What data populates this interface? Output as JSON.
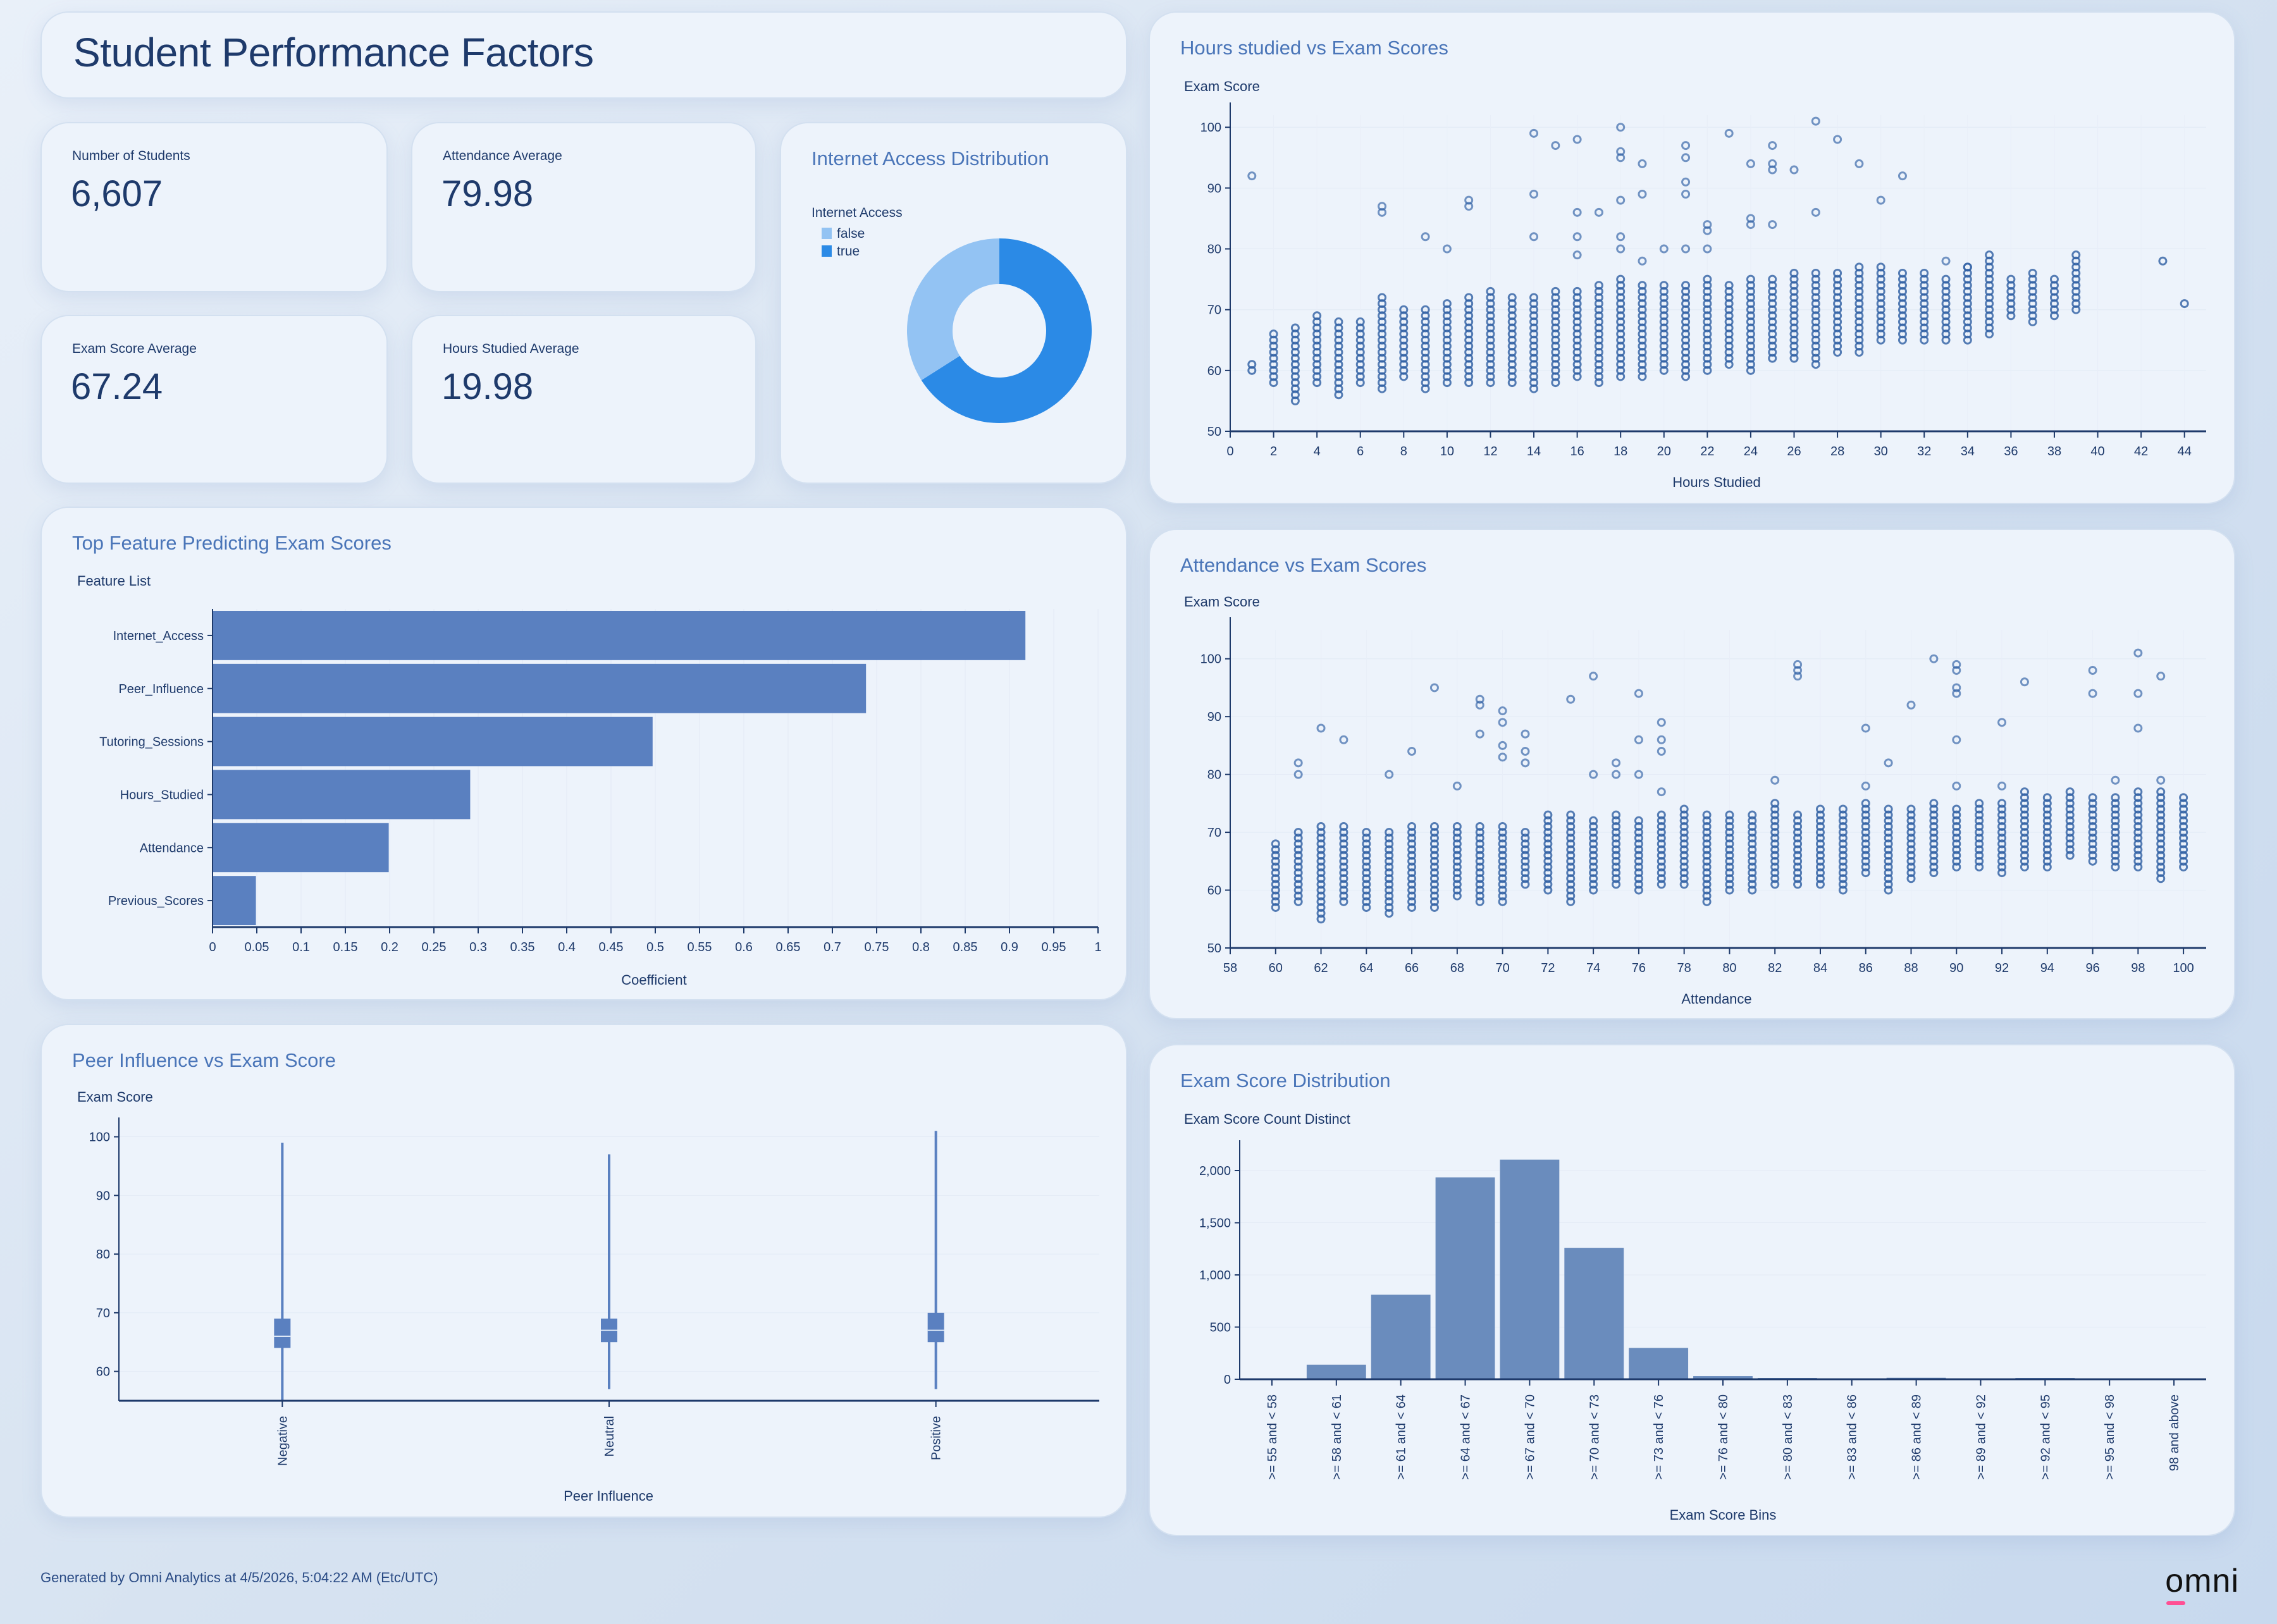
{
  "page": {
    "title": "Student Performance Factors",
    "footer": "Generated by Omni Analytics at 4/5/2026, 5:04:22 AM (Etc/UTC)",
    "logo_text": "omni",
    "logo_accent_color": "#ff4f94"
  },
  "kpis": [
    {
      "label": "Number of Students",
      "value": "6,607"
    },
    {
      "label": "Attendance Average",
      "value": "79.98"
    },
    {
      "label": "Exam Score Average",
      "value": "67.24"
    },
    {
      "label": "Hours Studied Average",
      "value": "19.98"
    }
  ],
  "colors": {
    "bar": "#5a80c0",
    "histogram_bar": "#6a8cbd",
    "point": "#2d5ea3",
    "donut_true": "#2b8ae6",
    "donut_false": "#93c3f3",
    "title": "#1e3a6b",
    "chart_title": "#4a75b8"
  },
  "chart_data": [
    {
      "id": "internet",
      "type": "pie",
      "title": "Internet Access Distribution",
      "legend_title": "Internet Access",
      "legend_position": "top-left",
      "donut": true,
      "slices": [
        {
          "label": "true",
          "value": 66
        },
        {
          "label": "false",
          "value": 34
        }
      ]
    },
    {
      "id": "features",
      "type": "bar",
      "orientation": "horizontal",
      "title": "Top Feature Predicting Exam Scores",
      "ylabel": "Feature List",
      "xlabel": "Coefficient",
      "categories": [
        "Internet_Access",
        "Peer_Influence",
        "Tutoring_Sessions",
        "Hours_Studied",
        "Attendance",
        "Previous_Scores"
      ],
      "values": [
        0.918,
        0.738,
        0.497,
        0.291,
        0.199,
        0.049
      ],
      "xlim": [
        0,
        1
      ],
      "xticks": [
        "0",
        "0.05",
        "0.1",
        "0.15",
        "0.2",
        "0.25",
        "0.3",
        "0.35",
        "0.4",
        "0.45",
        "0.5",
        "0.55",
        "0.6",
        "0.65",
        "0.7",
        "0.75",
        "0.8",
        "0.85",
        "0.9",
        "0.95",
        "1"
      ],
      "grid": true
    },
    {
      "id": "peer",
      "type": "box",
      "title": "Peer Influence vs Exam Score",
      "ylabel": "Exam Score",
      "xlabel": "Peer Influence",
      "categories": [
        "Negative",
        "Neutral",
        "Positive"
      ],
      "boxes": [
        {
          "min": 55,
          "q1": 64,
          "median": 66,
          "q3": 69,
          "max": 99
        },
        {
          "min": 57,
          "q1": 65,
          "median": 67,
          "q3": 69,
          "max": 97
        },
        {
          "min": 57,
          "q1": 65,
          "median": 67,
          "q3": 70,
          "max": 101
        }
      ],
      "ylim": [
        55,
        102
      ],
      "yticks": [
        "60",
        "70",
        "80",
        "90",
        "100"
      ]
    },
    {
      "id": "hours",
      "type": "scatter",
      "title": "Hours studied vs Exam Scores",
      "ylabel": "Exam Score",
      "xlabel": "Hours Studied",
      "xlim": [
        0,
        45
      ],
      "ylim": [
        50,
        102
      ],
      "xticks": [
        "0",
        "2",
        "4",
        "6",
        "8",
        "10",
        "12",
        "14",
        "16",
        "18",
        "20",
        "22",
        "24",
        "26",
        "28",
        "30",
        "32",
        "34",
        "36",
        "38",
        "40",
        "42",
        "44"
      ],
      "yticks": [
        "50",
        "60",
        "70",
        "80",
        "90",
        "100"
      ],
      "columns": [
        [
          1,
          60,
          61
        ],
        [
          2,
          58,
          66
        ],
        [
          3,
          55,
          67
        ],
        [
          4,
          58,
          69
        ],
        [
          5,
          56,
          68
        ],
        [
          6,
          58,
          68
        ],
        [
          7,
          57,
          72
        ],
        [
          8,
          59,
          70
        ],
        [
          9,
          57,
          70
        ],
        [
          10,
          58,
          71
        ],
        [
          11,
          58,
          72
        ],
        [
          12,
          58,
          73
        ],
        [
          13,
          58,
          72
        ],
        [
          14,
          57,
          72
        ],
        [
          15,
          58,
          73
        ],
        [
          16,
          59,
          73
        ],
        [
          17,
          58,
          74
        ],
        [
          18,
          59,
          75
        ],
        [
          19,
          59,
          74
        ],
        [
          20,
          60,
          74
        ],
        [
          21,
          59,
          74
        ],
        [
          22,
          60,
          75
        ],
        [
          23,
          61,
          74
        ],
        [
          24,
          60,
          75
        ],
        [
          25,
          62,
          75
        ],
        [
          26,
          62,
          76
        ],
        [
          27,
          61,
          76
        ],
        [
          28,
          63,
          76
        ],
        [
          29,
          63,
          77
        ],
        [
          30,
          65,
          77
        ],
        [
          31,
          65,
          76
        ],
        [
          32,
          65,
          76
        ],
        [
          33,
          65,
          75
        ],
        [
          34,
          65,
          77
        ],
        [
          35,
          66,
          79
        ],
        [
          36,
          69,
          75
        ],
        [
          37,
          68,
          76
        ],
        [
          38,
          69,
          75
        ],
        [
          39,
          70,
          79
        ],
        [
          43,
          78,
          78
        ],
        [
          44,
          71,
          71
        ]
      ],
      "outliers": [
        [
          1,
          92
        ],
        [
          7,
          86
        ],
        [
          7,
          87
        ],
        [
          9,
          82
        ],
        [
          10,
          80
        ],
        [
          11,
          87
        ],
        [
          11,
          88
        ],
        [
          14,
          99
        ],
        [
          14,
          89
        ],
        [
          14,
          82
        ],
        [
          15,
          97
        ],
        [
          16,
          98
        ],
        [
          16,
          86
        ],
        [
          16,
          82
        ],
        [
          16,
          79
        ],
        [
          17,
          86
        ],
        [
          18,
          100
        ],
        [
          18,
          96
        ],
        [
          18,
          95
        ],
        [
          18,
          88
        ],
        [
          18,
          82
        ],
        [
          18,
          80
        ],
        [
          19,
          94
        ],
        [
          19,
          89
        ],
        [
          19,
          78
        ],
        [
          20,
          80
        ],
        [
          21,
          97
        ],
        [
          21,
          95
        ],
        [
          21,
          91
        ],
        [
          21,
          89
        ],
        [
          21,
          80
        ],
        [
          22,
          84
        ],
        [
          22,
          83
        ],
        [
          22,
          80
        ],
        [
          23,
          99
        ],
        [
          24,
          94
        ],
        [
          24,
          85
        ],
        [
          24,
          84
        ],
        [
          25,
          97
        ],
        [
          25,
          94
        ],
        [
          25,
          93
        ],
        [
          25,
          84
        ],
        [
          26,
          93
        ],
        [
          27,
          101
        ],
        [
          27,
          86
        ],
        [
          28,
          98
        ],
        [
          29,
          94
        ],
        [
          30,
          88
        ],
        [
          31,
          92
        ],
        [
          33,
          78
        ],
        [
          34,
          77
        ]
      ]
    },
    {
      "id": "attendance",
      "type": "scatter",
      "title": "Attendance vs Exam Scores",
      "ylabel": "Exam Score",
      "xlabel": "Attendance",
      "xlim": [
        58,
        101
      ],
      "ylim": [
        50,
        105
      ],
      "xticks": [
        "58",
        "60",
        "62",
        "64",
        "66",
        "68",
        "70",
        "72",
        "74",
        "76",
        "78",
        "80",
        "82",
        "84",
        "86",
        "88",
        "90",
        "92",
        "94",
        "96",
        "98",
        "100"
      ],
      "yticks": [
        "50",
        "60",
        "70",
        "80",
        "90",
        "100"
      ],
      "columns": [
        [
          60,
          57,
          68
        ],
        [
          61,
          58,
          70
        ],
        [
          62,
          55,
          71
        ],
        [
          63,
          58,
          71
        ],
        [
          64,
          57,
          70
        ],
        [
          65,
          56,
          70
        ],
        [
          66,
          57,
          71
        ],
        [
          67,
          57,
          71
        ],
        [
          68,
          59,
          71
        ],
        [
          69,
          58,
          71
        ],
        [
          70,
          58,
          71
        ],
        [
          71,
          61,
          70
        ],
        [
          72,
          60,
          73
        ],
        [
          73,
          58,
          73
        ],
        [
          74,
          60,
          72
        ],
        [
          75,
          61,
          73
        ],
        [
          76,
          60,
          72
        ],
        [
          77,
          61,
          73
        ],
        [
          78,
          61,
          74
        ],
        [
          79,
          58,
          73
        ],
        [
          80,
          60,
          73
        ],
        [
          81,
          60,
          73
        ],
        [
          82,
          61,
          75
        ],
        [
          83,
          61,
          73
        ],
        [
          84,
          61,
          74
        ],
        [
          85,
          60,
          74
        ],
        [
          86,
          63,
          75
        ],
        [
          87,
          60,
          74
        ],
        [
          88,
          62,
          74
        ],
        [
          89,
          63,
          75
        ],
        [
          90,
          64,
          74
        ],
        [
          91,
          64,
          75
        ],
        [
          92,
          63,
          75
        ],
        [
          93,
          64,
          77
        ],
        [
          94,
          64,
          76
        ],
        [
          95,
          66,
          77
        ],
        [
          96,
          65,
          76
        ],
        [
          97,
          64,
          76
        ],
        [
          98,
          64,
          77
        ],
        [
          99,
          62,
          77
        ],
        [
          100,
          64,
          76
        ]
      ],
      "outliers": [
        [
          61,
          82
        ],
        [
          61,
          80
        ],
        [
          62,
          88
        ],
        [
          63,
          86
        ],
        [
          65,
          80
        ],
        [
          66,
          84
        ],
        [
          67,
          95
        ],
        [
          68,
          78
        ],
        [
          69,
          93
        ],
        [
          69,
          92
        ],
        [
          69,
          87
        ],
        [
          70,
          91
        ],
        [
          70,
          89
        ],
        [
          70,
          85
        ],
        [
          70,
          83
        ],
        [
          71,
          87
        ],
        [
          71,
          84
        ],
        [
          71,
          82
        ],
        [
          73,
          93
        ],
        [
          74,
          97
        ],
        [
          74,
          80
        ],
        [
          75,
          82
        ],
        [
          75,
          80
        ],
        [
          76,
          94
        ],
        [
          76,
          86
        ],
        [
          76,
          80
        ],
        [
          77,
          89
        ],
        [
          77,
          86
        ],
        [
          77,
          84
        ],
        [
          77,
          77
        ],
        [
          82,
          79
        ],
        [
          83,
          99
        ],
        [
          83,
          98
        ],
        [
          83,
          97
        ],
        [
          86,
          88
        ],
        [
          86,
          78
        ],
        [
          87,
          82
        ],
        [
          88,
          92
        ],
        [
          89,
          100
        ],
        [
          90,
          99
        ],
        [
          90,
          98
        ],
        [
          90,
          95
        ],
        [
          90,
          94
        ],
        [
          90,
          86
        ],
        [
          90,
          78
        ],
        [
          92,
          89
        ],
        [
          92,
          78
        ],
        [
          93,
          96
        ],
        [
          96,
          98
        ],
        [
          96,
          94
        ],
        [
          97,
          79
        ],
        [
          98,
          101
        ],
        [
          98,
          94
        ],
        [
          98,
          88
        ],
        [
          99,
          97
        ],
        [
          99,
          79
        ]
      ]
    },
    {
      "id": "histogram",
      "type": "bar",
      "title": "Exam Score Distribution",
      "ylabel": "Exam Score Count Distinct",
      "xlabel": "Exam Score Bins",
      "categories": [
        ">= 55 and < 58",
        ">= 58 and < 61",
        ">= 61 and < 64",
        ">= 64 and < 67",
        ">= 67 and < 70",
        ">= 70 and < 73",
        ">= 73 and < 76",
        ">= 76 and < 80",
        ">= 80 and < 83",
        ">= 83 and < 86",
        ">= 86 and < 89",
        ">= 89 and < 92",
        ">= 92 and < 95",
        ">= 95 and < 98",
        "98 and above"
      ],
      "values": [
        7,
        140,
        810,
        1935,
        2105,
        1260,
        300,
        30,
        12,
        7,
        14,
        6,
        12,
        7,
        8
      ],
      "ylim": [
        0,
        2200
      ],
      "yticks": [
        "0",
        "500",
        "1,000",
        "1,500",
        "2,000"
      ],
      "ytick_values": [
        0,
        500,
        1000,
        1500,
        2000
      ]
    }
  ]
}
